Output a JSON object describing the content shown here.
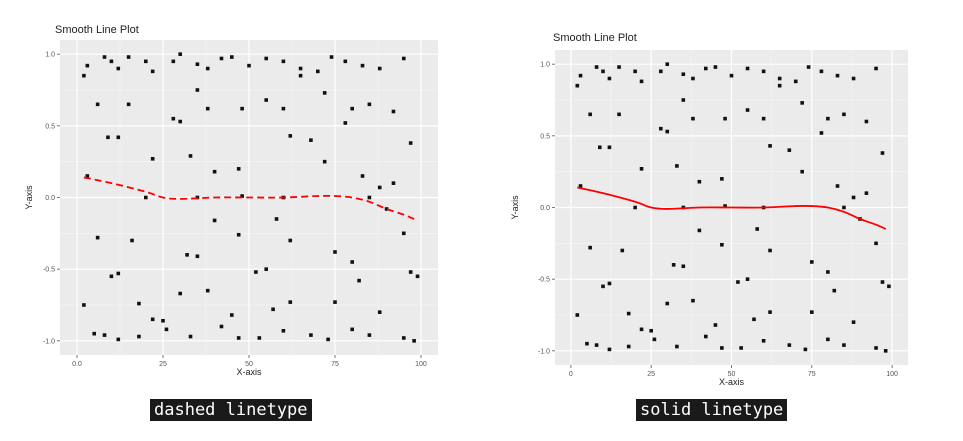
{
  "captions": {
    "left": "dashed linetype",
    "right": "solid linetype"
  },
  "chart_data": [
    {
      "type": "scatter",
      "title": "Smooth Line Plot",
      "xlabel": "X-axis",
      "ylabel": "Y-axis",
      "xlim": [
        0,
        100
      ],
      "ylim": [
        -1,
        1
      ],
      "x_ticks": [
        0,
        25,
        50,
        75,
        100
      ],
      "x_tick_labels": [
        "0.0",
        "25",
        "50",
        "75",
        "100"
      ],
      "y_ticks": [
        -1,
        -0.5,
        0,
        0.5,
        1
      ],
      "y_tick_labels": [
        "-1.0",
        "-0.5",
        "0.0",
        "0.5",
        "1.0"
      ],
      "grid": true,
      "background": "#ebebeb",
      "smooth_color": "#ff0000",
      "smooth_linetype": "dashed",
      "points": [
        [
          2,
          0.85
        ],
        [
          3,
          0.92
        ],
        [
          8,
          0.98
        ],
        [
          10,
          0.95
        ],
        [
          12,
          0.9
        ],
        [
          15,
          0.98
        ],
        [
          20,
          0.95
        ],
        [
          22,
          0.88
        ],
        [
          28,
          0.95
        ],
        [
          30,
          1.0
        ],
        [
          35,
          0.93
        ],
        [
          38,
          0.9
        ],
        [
          42,
          0.97
        ],
        [
          45,
          0.98
        ],
        [
          50,
          0.92
        ],
        [
          55,
          0.97
        ],
        [
          60,
          0.95
        ],
        [
          65,
          0.9
        ],
        [
          70,
          0.88
        ],
        [
          74,
          0.98
        ],
        [
          78,
          0.95
        ],
        [
          83,
          0.92
        ],
        [
          88,
          0.9
        ],
        [
          95,
          0.97
        ],
        [
          6,
          0.65
        ],
        [
          9,
          0.42
        ],
        [
          12,
          0.42
        ],
        [
          15,
          0.65
        ],
        [
          28,
          0.55
        ],
        [
          30,
          0.53
        ],
        [
          35,
          0.75
        ],
        [
          38,
          0.62
        ],
        [
          48,
          0.62
        ],
        [
          55,
          0.68
        ],
        [
          60,
          0.62
        ],
        [
          65,
          0.85
        ],
        [
          72,
          0.73
        ],
        [
          78,
          0.52
        ],
        [
          85,
          0.65
        ],
        [
          92,
          0.6
        ],
        [
          97,
          0.38
        ],
        [
          22,
          0.27
        ],
        [
          33,
          0.29
        ],
        [
          40,
          0.18
        ],
        [
          47,
          0.2
        ],
        [
          62,
          0.43
        ],
        [
          68,
          0.4
        ],
        [
          72,
          0.25
        ],
        [
          80,
          0.62
        ],
        [
          83,
          0.15
        ],
        [
          92,
          0.1
        ],
        [
          20,
          0.0
        ],
        [
          35,
          0.0
        ],
        [
          48,
          0.01
        ],
        [
          60,
          0.0
        ],
        [
          85,
          0.0
        ],
        [
          88,
          0.07
        ],
        [
          3,
          0.15
        ],
        [
          40,
          -0.16
        ],
        [
          47,
          -0.26
        ],
        [
          58,
          -0.15
        ],
        [
          62,
          -0.3
        ],
        [
          90,
          -0.08
        ],
        [
          95,
          -0.25
        ],
        [
          6,
          -0.28
        ],
        [
          16,
          -0.3
        ],
        [
          10,
          -0.55
        ],
        [
          12,
          -0.53
        ],
        [
          32,
          -0.4
        ],
        [
          35,
          -0.41
        ],
        [
          52,
          -0.52
        ],
        [
          55,
          -0.5
        ],
        [
          75,
          -0.38
        ],
        [
          80,
          -0.45
        ],
        [
          97,
          -0.52
        ],
        [
          99,
          -0.55
        ],
        [
          18,
          -0.74
        ],
        [
          22,
          -0.85
        ],
        [
          30,
          -0.67
        ],
        [
          38,
          -0.65
        ],
        [
          45,
          -0.82
        ],
        [
          57,
          -0.78
        ],
        [
          62,
          -0.73
        ],
        [
          75,
          -0.73
        ],
        [
          82,
          -0.58
        ],
        [
          88,
          -0.8
        ],
        [
          5,
          -0.95
        ],
        [
          8,
          -0.96
        ],
        [
          12,
          -0.99
        ],
        [
          18,
          -0.97
        ],
        [
          26,
          -0.92
        ],
        [
          33,
          -0.97
        ],
        [
          42,
          -0.9
        ],
        [
          47,
          -0.98
        ],
        [
          53,
          -0.98
        ],
        [
          60,
          -0.93
        ],
        [
          68,
          -0.96
        ],
        [
          73,
          -0.99
        ],
        [
          80,
          -0.92
        ],
        [
          85,
          -0.96
        ],
        [
          95,
          -0.98
        ],
        [
          98,
          -1.0
        ],
        [
          2,
          -0.75
        ],
        [
          25,
          -0.86
        ]
      ],
      "smooth": [
        [
          2,
          0.14
        ],
        [
          10,
          0.1
        ],
        [
          20,
          0.04
        ],
        [
          25,
          0.0
        ],
        [
          30,
          -0.01
        ],
        [
          40,
          0.0
        ],
        [
          50,
          0.0
        ],
        [
          60,
          0.0
        ],
        [
          70,
          0.01
        ],
        [
          75,
          0.01
        ],
        [
          80,
          0.0
        ],
        [
          85,
          -0.03
        ],
        [
          90,
          -0.08
        ],
        [
          95,
          -0.12
        ],
        [
          98,
          -0.15
        ]
      ]
    },
    {
      "type": "scatter",
      "title": "Smooth Line Plot",
      "xlabel": "X-axis",
      "ylabel": "Y-axis",
      "xlim": [
        0,
        100
      ],
      "ylim": [
        -1,
        1
      ],
      "x_ticks": [
        0,
        25,
        50,
        75,
        100
      ],
      "x_tick_labels": [
        "0",
        "25",
        "50",
        "75",
        "100"
      ],
      "y_ticks": [
        -1,
        -0.5,
        0,
        0.5,
        1
      ],
      "y_tick_labels": [
        "-1.0",
        "-0.5",
        "0.0",
        "0.5",
        "1.0"
      ],
      "grid": true,
      "background": "#ebebeb",
      "smooth_color": "#ff0000",
      "smooth_linetype": "solid",
      "points": [
        [
          2,
          0.85
        ],
        [
          3,
          0.92
        ],
        [
          8,
          0.98
        ],
        [
          10,
          0.95
        ],
        [
          12,
          0.9
        ],
        [
          15,
          0.98
        ],
        [
          20,
          0.95
        ],
        [
          22,
          0.88
        ],
        [
          28,
          0.95
        ],
        [
          30,
          1.0
        ],
        [
          35,
          0.93
        ],
        [
          38,
          0.9
        ],
        [
          42,
          0.97
        ],
        [
          45,
          0.98
        ],
        [
          50,
          0.92
        ],
        [
          55,
          0.97
        ],
        [
          60,
          0.95
        ],
        [
          65,
          0.9
        ],
        [
          70,
          0.88
        ],
        [
          74,
          0.98
        ],
        [
          78,
          0.95
        ],
        [
          83,
          0.92
        ],
        [
          88,
          0.9
        ],
        [
          95,
          0.97
        ],
        [
          6,
          0.65
        ],
        [
          9,
          0.42
        ],
        [
          12,
          0.42
        ],
        [
          15,
          0.65
        ],
        [
          28,
          0.55
        ],
        [
          30,
          0.53
        ],
        [
          35,
          0.75
        ],
        [
          38,
          0.62
        ],
        [
          48,
          0.62
        ],
        [
          55,
          0.68
        ],
        [
          60,
          0.62
        ],
        [
          65,
          0.85
        ],
        [
          72,
          0.73
        ],
        [
          78,
          0.52
        ],
        [
          85,
          0.65
        ],
        [
          92,
          0.6
        ],
        [
          97,
          0.38
        ],
        [
          22,
          0.27
        ],
        [
          33,
          0.29
        ],
        [
          40,
          0.18
        ],
        [
          47,
          0.2
        ],
        [
          62,
          0.43
        ],
        [
          68,
          0.4
        ],
        [
          72,
          0.25
        ],
        [
          80,
          0.62
        ],
        [
          83,
          0.15
        ],
        [
          92,
          0.1
        ],
        [
          20,
          0.0
        ],
        [
          35,
          0.0
        ],
        [
          48,
          0.01
        ],
        [
          60,
          0.0
        ],
        [
          85,
          0.0
        ],
        [
          88,
          0.07
        ],
        [
          3,
          0.15
        ],
        [
          40,
          -0.16
        ],
        [
          47,
          -0.26
        ],
        [
          58,
          -0.15
        ],
        [
          62,
          -0.3
        ],
        [
          90,
          -0.08
        ],
        [
          95,
          -0.25
        ],
        [
          6,
          -0.28
        ],
        [
          16,
          -0.3
        ],
        [
          10,
          -0.55
        ],
        [
          12,
          -0.53
        ],
        [
          32,
          -0.4
        ],
        [
          35,
          -0.41
        ],
        [
          52,
          -0.52
        ],
        [
          55,
          -0.5
        ],
        [
          75,
          -0.38
        ],
        [
          80,
          -0.45
        ],
        [
          97,
          -0.52
        ],
        [
          99,
          -0.55
        ],
        [
          18,
          -0.74
        ],
        [
          22,
          -0.85
        ],
        [
          30,
          -0.67
        ],
        [
          38,
          -0.65
        ],
        [
          45,
          -0.82
        ],
        [
          57,
          -0.78
        ],
        [
          62,
          -0.73
        ],
        [
          75,
          -0.73
        ],
        [
          82,
          -0.58
        ],
        [
          88,
          -0.8
        ],
        [
          5,
          -0.95
        ],
        [
          8,
          -0.96
        ],
        [
          12,
          -0.99
        ],
        [
          18,
          -0.97
        ],
        [
          26,
          -0.92
        ],
        [
          33,
          -0.97
        ],
        [
          42,
          -0.9
        ],
        [
          47,
          -0.98
        ],
        [
          53,
          -0.98
        ],
        [
          60,
          -0.93
        ],
        [
          68,
          -0.96
        ],
        [
          73,
          -0.99
        ],
        [
          80,
          -0.92
        ],
        [
          85,
          -0.96
        ],
        [
          95,
          -0.98
        ],
        [
          98,
          -1.0
        ],
        [
          2,
          -0.75
        ],
        [
          25,
          -0.86
        ]
      ],
      "smooth": [
        [
          2,
          0.14
        ],
        [
          10,
          0.1
        ],
        [
          20,
          0.04
        ],
        [
          25,
          0.0
        ],
        [
          30,
          -0.01
        ],
        [
          40,
          0.0
        ],
        [
          50,
          0.0
        ],
        [
          60,
          0.0
        ],
        [
          70,
          0.01
        ],
        [
          75,
          0.01
        ],
        [
          80,
          0.0
        ],
        [
          85,
          -0.03
        ],
        [
          90,
          -0.08
        ],
        [
          95,
          -0.12
        ],
        [
          98,
          -0.15
        ]
      ]
    }
  ]
}
